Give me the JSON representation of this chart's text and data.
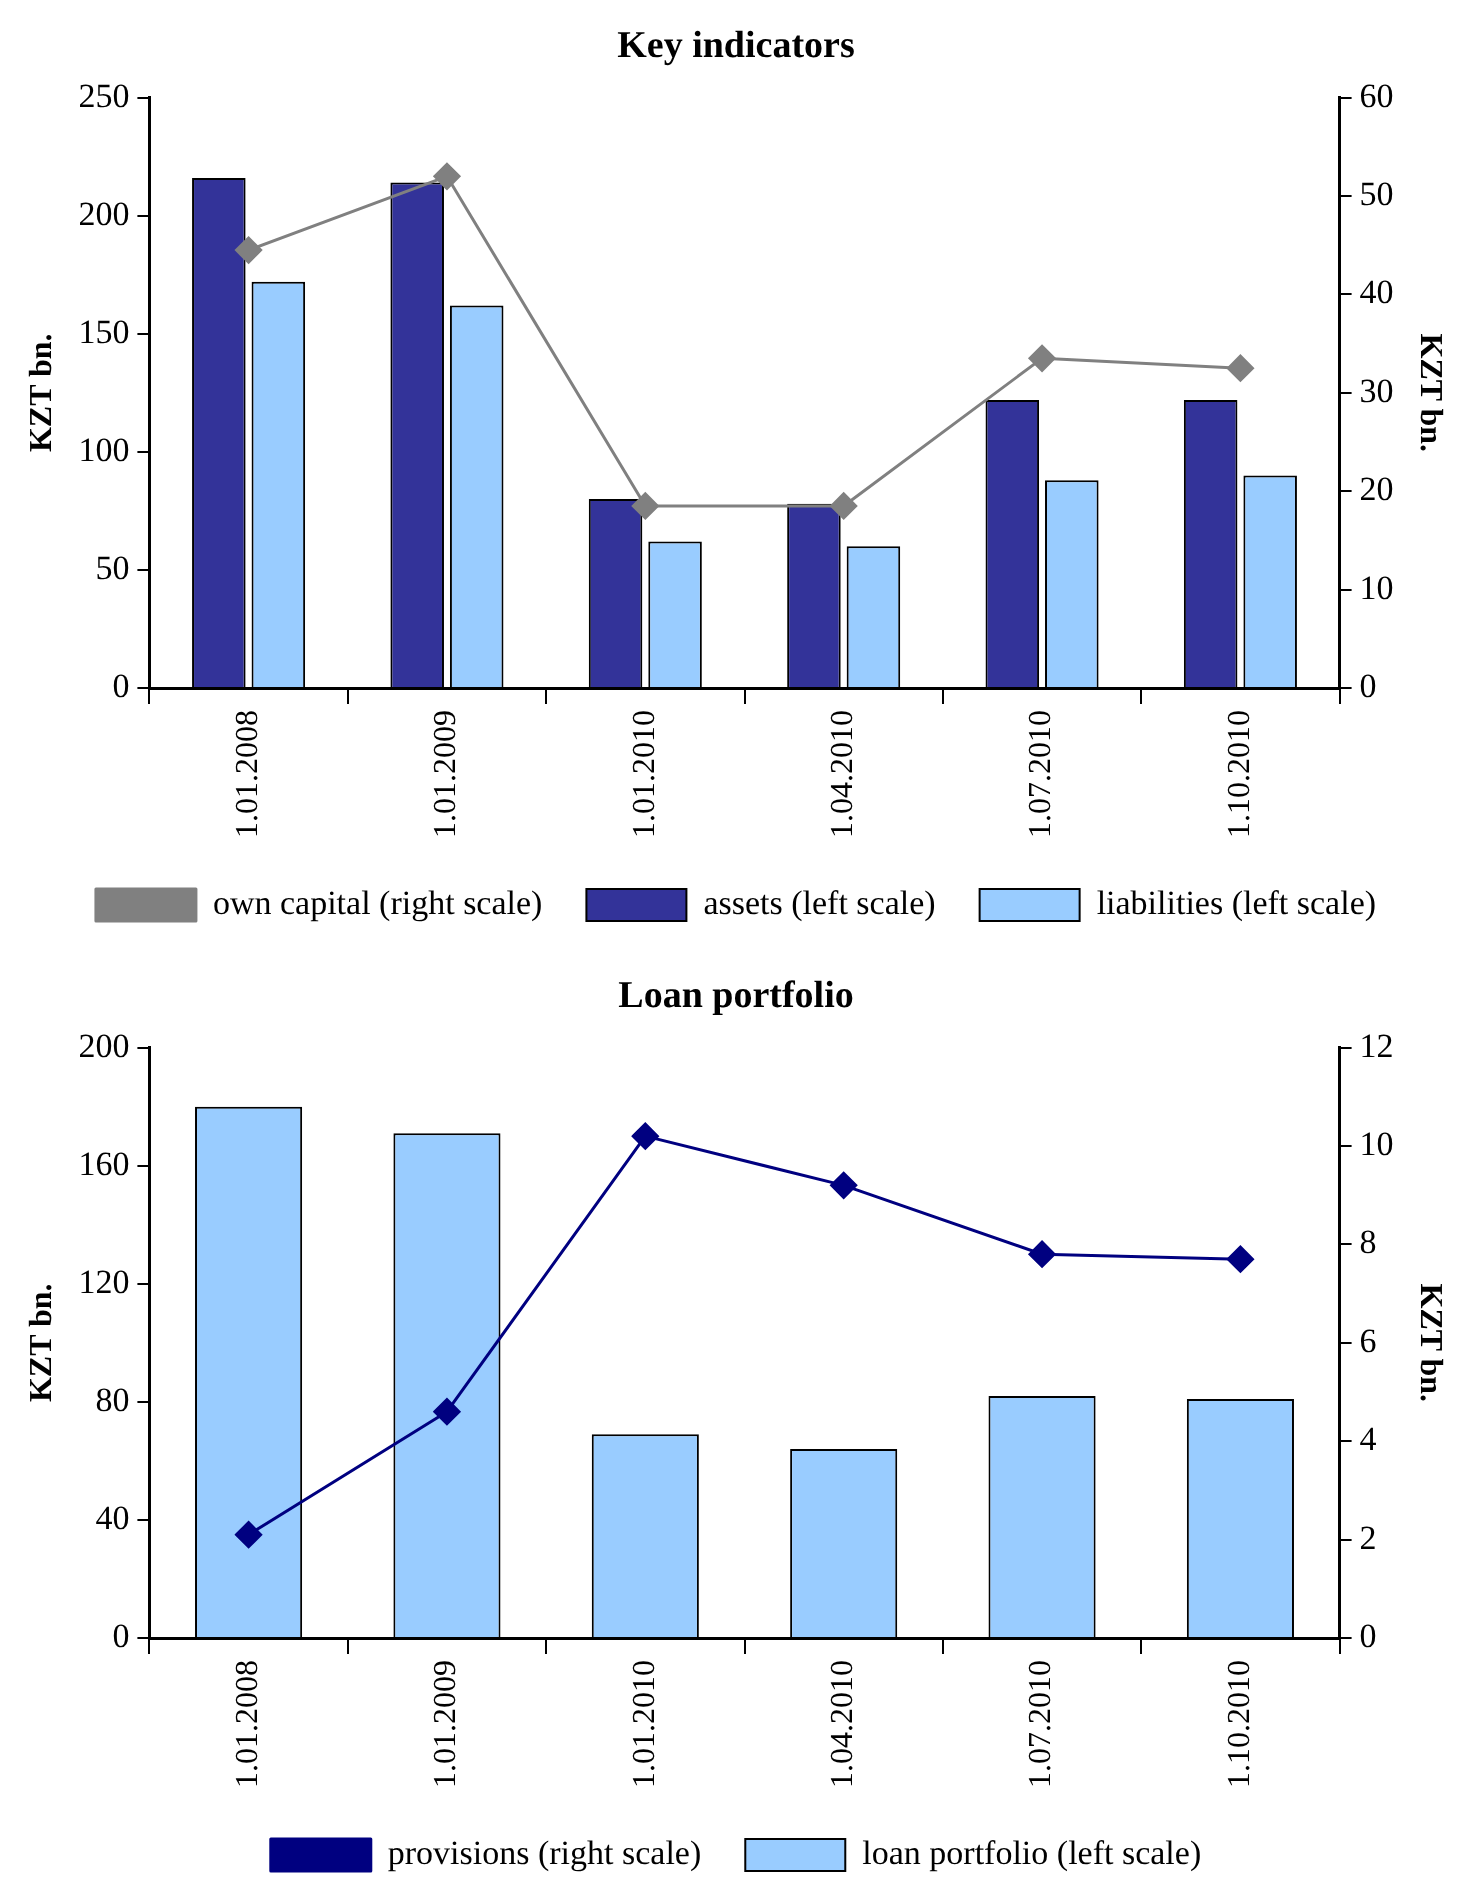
{
  "chart_data": [
    {
      "type": "bar",
      "title": "Key indicators",
      "ylabel": "KZT bn.",
      "y2label": "KZT bn.",
      "categories": [
        "1.01.2008",
        "1.01.2009",
        "1.01.2010",
        "1.04.2010",
        "1.07.2010",
        "1.10.2010"
      ],
      "series": [
        {
          "name": "assets (left scale)",
          "color": "#333399",
          "values": [
            216,
            214,
            80,
            78,
            122,
            122
          ]
        },
        {
          "name": "liabilities (left scale)",
          "color": "#99ccff",
          "values": [
            172,
            162,
            62,
            60,
            88,
            90
          ]
        },
        {
          "name": "own capital (right scale)",
          "type": "line",
          "axis": "y2",
          "color": "#808080",
          "values": [
            44.5,
            52,
            18.5,
            18.5,
            33.5,
            32.5
          ]
        }
      ],
      "ylim": [
        0,
        250
      ],
      "yticks": [
        0,
        50,
        100,
        150,
        200,
        250
      ],
      "y2lim": [
        0,
        60
      ],
      "y2ticks": [
        0,
        10,
        20,
        30,
        40,
        50,
        60
      ],
      "grid": false,
      "legend": "bottom",
      "marker": "diamond"
    },
    {
      "type": "bar",
      "title": "Loan portfolio",
      "ylabel": "KZT bn.",
      "y2label": "KZT bn.",
      "categories": [
        "1.01.2008",
        "1.01.2009",
        "1.01.2010",
        "1.04.2010",
        "1.07.2010",
        "1.10.2010"
      ],
      "series": [
        {
          "name": "loan portfolio (left scale)",
          "color": "#99ccff",
          "values": [
            180,
            171,
            69,
            64,
            82,
            81
          ]
        },
        {
          "name": "provisions (right scale)",
          "type": "line",
          "axis": "y2",
          "color": "#000080",
          "values": [
            2.1,
            4.6,
            10.2,
            9.2,
            7.8,
            7.7
          ]
        }
      ],
      "ylim": [
        0,
        200
      ],
      "yticks": [
        0,
        40,
        80,
        120,
        160,
        200
      ],
      "y2lim": [
        0,
        12
      ],
      "y2ticks": [
        0,
        2,
        4,
        6,
        8,
        10,
        12
      ],
      "grid": false,
      "legend": "bottom",
      "marker": "diamond"
    }
  ]
}
